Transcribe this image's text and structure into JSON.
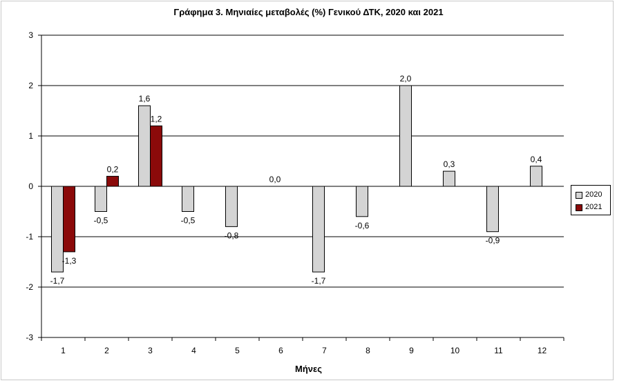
{
  "chart_data": {
    "type": "bar",
    "title": "Γράφημα 3. Μηνιαίες μεταβολές (%) Γενικού ΔΤΚ, 2020 και 2021",
    "xlabel": "Μήνες",
    "ylabel": "",
    "categories": [
      "1",
      "2",
      "3",
      "4",
      "5",
      "6",
      "7",
      "8",
      "9",
      "10",
      "11",
      "12"
    ],
    "ylim": [
      -3,
      3
    ],
    "yticks": [
      3,
      2,
      1,
      0,
      -1,
      -2,
      -3
    ],
    "grid": true,
    "legend_position": "right",
    "series": [
      {
        "name": "2020",
        "color": "#d4d4d4",
        "values": [
          -1.7,
          -0.5,
          1.6,
          -0.5,
          -0.8,
          0.0,
          -1.7,
          -0.6,
          2.0,
          0.3,
          -0.9,
          0.4
        ],
        "labels": [
          "-1,7",
          "-0,5",
          "1,6",
          "-0,5",
          "-0,8",
          "0,0",
          "-1,7",
          "-0,6",
          "2,0",
          "0,3",
          "-0,9",
          "0,4"
        ]
      },
      {
        "name": "2021",
        "color": "#8b0a0a",
        "values": [
          -1.3,
          0.2,
          1.2,
          null,
          null,
          null,
          null,
          null,
          null,
          null,
          null,
          null
        ],
        "labels": [
          "-1,3",
          "0,2",
          "1,2",
          null,
          null,
          null,
          null,
          null,
          null,
          null,
          null,
          null
        ]
      }
    ]
  }
}
